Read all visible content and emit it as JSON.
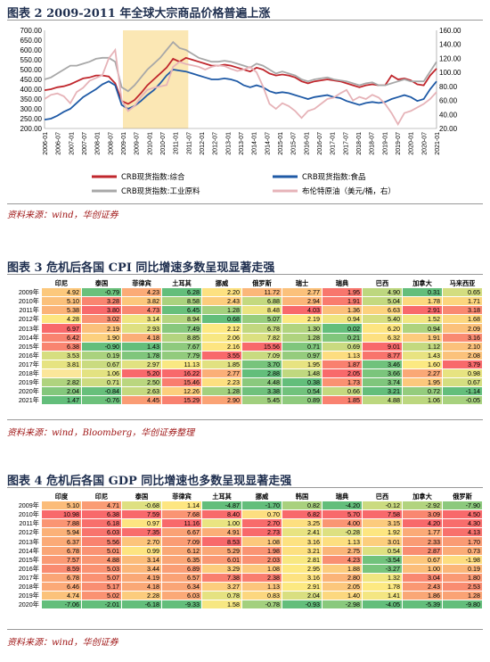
{
  "fig2": {
    "title": "图表 2    2009-2011 年全球大宗商品价格普遍上涨",
    "source": "资料来源：wind，华创证券",
    "chart_data": {
      "type": "line",
      "left_axis": {
        "min": 200,
        "max": 700,
        "ticks": [
          "200.00",
          "250.00",
          "300.00",
          "350.00",
          "400.00",
          "450.00",
          "500.00",
          "550.00",
          "600.00",
          "650.00",
          "700.00"
        ]
      },
      "right_axis": {
        "min": 20,
        "max": 160,
        "ticks": [
          "20.00",
          "40.00",
          "60.00",
          "80.00",
          "100.00",
          "120.00",
          "140.00",
          "160.00"
        ]
      },
      "x_ticks": [
        "2006-01",
        "2006-07",
        "2007-01",
        "2007-07",
        "2008-01",
        "2008-07",
        "2009-01",
        "2009-07",
        "2010-01",
        "2010-07",
        "2011-01",
        "2011-07",
        "2012-01",
        "2012-07",
        "2013-01",
        "2013-07",
        "2014-01",
        "2014-07",
        "2015-01",
        "2015-07",
        "2016-01",
        "2016-07",
        "2017-01",
        "2017-07",
        "2018-01",
        "2018-07",
        "2019-01",
        "2019-07",
        "2020-01",
        "2020-07",
        "2021-01"
      ],
      "highlight": [
        "2009-01",
        "2011-07"
      ],
      "series": [
        {
          "name": "CRB现货指数:综合",
          "color": "#c0272d",
          "axis": "left",
          "values": [
            395,
            400,
            410,
            415,
            425,
            440,
            455,
            460,
            470,
            470,
            465,
            430,
            340,
            325,
            345,
            380,
            420,
            450,
            480,
            510,
            555,
            540,
            560,
            550,
            540,
            530,
            520,
            520,
            525,
            520,
            510,
            500,
            490,
            510,
            500,
            480,
            470,
            475,
            470,
            460,
            440,
            430,
            440,
            445,
            450,
            445,
            440,
            430,
            420,
            410,
            420,
            425,
            420,
            420,
            470,
            450,
            455,
            445,
            425,
            420,
            470,
            505
          ]
        },
        {
          "name": "CRB现货指数:食品",
          "color": "#1f5aa6",
          "axis": "left",
          "values": [
            245,
            250,
            265,
            285,
            300,
            330,
            360,
            380,
            400,
            425,
            440,
            420,
            320,
            300,
            315,
            340,
            370,
            395,
            430,
            470,
            500,
            495,
            490,
            480,
            470,
            460,
            450,
            450,
            455,
            450,
            440,
            420,
            410,
            420,
            410,
            390,
            380,
            385,
            380,
            370,
            360,
            350,
            360,
            365,
            370,
            360,
            355,
            340,
            330,
            320,
            330,
            335,
            330,
            335,
            350,
            360,
            370,
            360,
            340,
            350,
            400,
            440
          ]
        },
        {
          "name": "CRB现货指数:工业原料",
          "color": "#a8a8a8",
          "axis": "left",
          "values": [
            450,
            460,
            480,
            500,
            520,
            520,
            530,
            540,
            555,
            560,
            560,
            540,
            410,
            390,
            420,
            460,
            500,
            530,
            560,
            600,
            640,
            610,
            600,
            580,
            560,
            550,
            540,
            540,
            545,
            540,
            530,
            520,
            510,
            530,
            520,
            500,
            480,
            490,
            480,
            470,
            450,
            440,
            450,
            455,
            460,
            450,
            445,
            440,
            430,
            420,
            430,
            435,
            420,
            420,
            430,
            440,
            450,
            440,
            440,
            440,
            490,
            540
          ]
        },
        {
          "name": "布伦特原油（美元/桶，右）",
          "color": "#e6b3b8",
          "axis": "right",
          "values": [
            62,
            68,
            70,
            66,
            56,
            72,
            78,
            88,
            92,
            96,
            120,
            132,
            60,
            45,
            52,
            65,
            75,
            78,
            80,
            82,
            108,
            115,
            112,
            110,
            108,
            104,
            108,
            110,
            109,
            105,
            102,
            104,
            108,
            100,
            80,
            55,
            48,
            56,
            52,
            45,
            35,
            45,
            48,
            55,
            62,
            64,
            70,
            75,
            60,
            65,
            62,
            68,
            64,
            55,
            42,
            26,
            42,
            45,
            50,
            55,
            62,
            72
          ]
        }
      ]
    }
  },
  "fig3": {
    "title": "图表 3    危机后各国 CPI 同比增速多数呈现显著走强",
    "source": "资料来源：wind，Bloomberg，华创证券整理",
    "columns": [
      "印尼",
      "泰国",
      "菲律宾",
      "土耳其",
      "挪威",
      "俄罗斯",
      "瑞士",
      "瑞典",
      "巴西",
      "加拿大",
      "马来西亚"
    ],
    "rows": [
      {
        "label": "2009年",
        "values": [
          "4.92",
          "-0.79",
          "4.23",
          "6.28",
          "2.20",
          "11.72",
          "2.77",
          "1.95",
          "4.90",
          "0.31",
          "0.65"
        ]
      },
      {
        "label": "2010年",
        "values": [
          "5.10",
          "3.28",
          "3.82",
          "8.58",
          "2.43",
          "6.88",
          "2.94",
          "1.91",
          "5.04",
          "1.78",
          "1.71"
        ]
      },
      {
        "label": "2011年",
        "values": [
          "5.38",
          "3.80",
          "4.73",
          "6.45",
          "1.28",
          "8.48",
          "4.03",
          "1.36",
          "6.63",
          "2.91",
          "3.18"
        ]
      },
      {
        "label": "2012年",
        "values": [
          "4.28",
          "3.02",
          "3.14",
          "8.94",
          "0.68",
          "5.07",
          "2.19",
          "0.94",
          "5.40",
          "1.52",
          "1.68"
        ]
      },
      {
        "label": "2013年",
        "values": [
          "6.97",
          "2.19",
          "2.93",
          "7.49",
          "2.12",
          "6.78",
          "1.30",
          "0.02",
          "6.20",
          "0.94",
          "2.09"
        ]
      },
      {
        "label": "2014年",
        "values": [
          "6.42",
          "1.90",
          "4.18",
          "8.85",
          "2.06",
          "7.82",
          "1.28",
          "0.21",
          "6.32",
          "1.91",
          "3.16"
        ]
      },
      {
        "label": "2015年",
        "values": [
          "6.38",
          "-0.90",
          "1.43",
          "7.67",
          "2.16",
          "15.56",
          "0.71",
          "0.69",
          "9.01",
          "1.12",
          "2.10"
        ]
      },
      {
        "label": "2016年",
        "values": [
          "3.53",
          "0.19",
          "1.78",
          "7.79",
          "3.55",
          "7.09",
          "0.97",
          "1.13",
          "8.77",
          "1.43",
          "2.08"
        ]
      },
      {
        "label": "2017年",
        "values": [
          "3.81",
          "0.67",
          "2.97",
          "11.13",
          "1.85",
          "3.70",
          "1.95",
          "1.87",
          "3.46",
          "1.60",
          "3.79"
        ]
      },
      {
        "label": "2018年",
        "values": [
          "",
          "1.06",
          "5.20",
          "16.22",
          "2.77",
          "2.88",
          "1.48",
          "2.05",
          "3.66",
          "2.27",
          "0.98"
        ]
      },
      {
        "label": "2019年",
        "values": [
          "2.82",
          "0.71",
          "2.50",
          "15.46",
          "2.23",
          "4.48",
          "0.38",
          "1.73",
          "3.74",
          "1.95",
          "0.67"
        ]
      },
      {
        "label": "2020年",
        "values": [
          "2.04",
          "-0.84",
          "2.63",
          "12.26",
          "1.28",
          "3.38",
          "0.54",
          "0.66",
          "3.21",
          "0.72",
          "-1.14"
        ]
      },
      {
        "label": "2021年",
        "values": [
          "1.47",
          "-0.76",
          "4.45",
          "15.29",
          "2.90",
          "5.45",
          "0.89",
          "1.85",
          "4.88",
          "1.06",
          "-0.05"
        ]
      }
    ]
  },
  "fig4": {
    "title": "图表 4    危机后各国 GDP 同比增速也多数呈现显著走强",
    "source": "资料来源：wind，华创证券",
    "columns": [
      "印度",
      "印尼",
      "泰国",
      "菲律宾",
      "土耳其",
      "挪威",
      "韩国",
      "瑞典",
      "巴西",
      "加拿大",
      "俄罗斯"
    ],
    "rows": [
      {
        "label": "2009年",
        "values": [
          "5.10",
          "4.71",
          "-0.68",
          "1.14",
          "-4.87",
          "-1.70",
          "0.82",
          "-4.20",
          "-0.12",
          "-2.92",
          "-7.90"
        ]
      },
      {
        "label": "2010年",
        "values": [
          "10.98",
          "6.38",
          "7.59",
          "7.68",
          "8.40",
          "0.70",
          "6.82",
          "5.70",
          "7.58",
          "3.09",
          "4.50"
        ]
      },
      {
        "label": "2011年",
        "values": [
          "7.88",
          "6.18",
          "0.97",
          "11.16",
          "1.00",
          "2.70",
          "3.25",
          "4.00",
          "3.15",
          "4.20",
          "4.30"
        ]
      },
      {
        "label": "2012年",
        "values": [
          "5.94",
          "6.03",
          "7.35",
          "6.67",
          "4.91",
          "2.73",
          "2.41",
          "-0.28",
          "1.92",
          "1.77",
          "4.13"
        ]
      },
      {
        "label": "2013年",
        "values": [
          "6.37",
          "5.56",
          "2.70",
          "7.09",
          "8.53",
          "1.08",
          "3.16",
          "1.13",
          "3.01",
          "2.33",
          "1.70"
        ]
      },
      {
        "label": "2014年",
        "values": [
          "6.78",
          "5.01",
          "0.99",
          "6.12",
          "5.29",
          "1.98",
          "3.21",
          "2.75",
          "0.54",
          "2.87",
          "0.73"
        ]
      },
      {
        "label": "2015年",
        "values": [
          "7.57",
          "4.88",
          "3.14",
          "6.35",
          "6.01",
          "2.03",
          "2.81",
          "4.23",
          "-3.54",
          "0.67",
          "-1.98"
        ]
      },
      {
        "label": "2016年",
        "values": [
          "8.59",
          "5.03",
          "3.44",
          "6.89",
          "3.29",
          "1.08",
          "2.95",
          "1.88",
          "-3.27",
          "1.00",
          "0.19"
        ]
      },
      {
        "label": "2017年",
        "values": [
          "6.78",
          "5.07",
          "4.19",
          "6.57",
          "7.38",
          "2.38",
          "3.16",
          "2.80",
          "1.32",
          "3.04",
          "1.80"
        ]
      },
      {
        "label": "2018年",
        "values": [
          "6.46",
          "5.17",
          "4.18",
          "6.34",
          "3.27",
          "1.13",
          "2.91",
          "2.05",
          "1.78",
          "2.43",
          "2.53"
        ]
      },
      {
        "label": "2019年",
        "values": [
          "4.74",
          "5.02",
          "2.28",
          "6.03",
          "0.78",
          "0.83",
          "2.04",
          "1.40",
          "1.41",
          "1.86",
          "1.28"
        ]
      },
      {
        "label": "2020年",
        "values": [
          "-7.06",
          "-2.01",
          "-6.18",
          "-9.33",
          "1.58",
          "-0.78",
          "-0.93",
          "-2.98",
          "-4.05",
          "-5.39",
          "-9.80"
        ]
      }
    ]
  }
}
